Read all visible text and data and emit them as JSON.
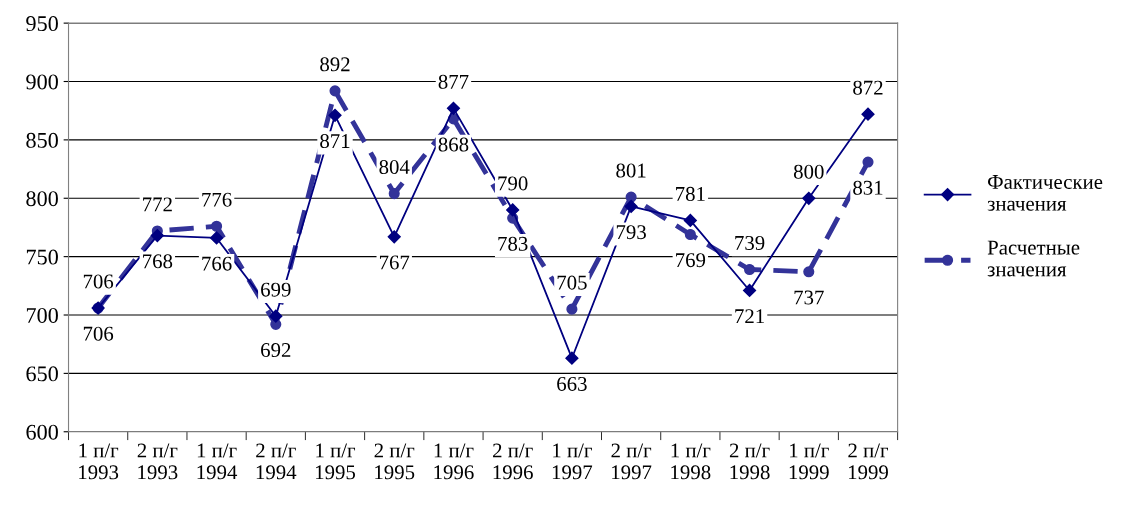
{
  "chart_data": {
    "type": "line",
    "categories": [
      "1 п/г\n1993",
      "2 п/г\n1993",
      "1 п/г\n1994",
      "2 п/г\n1994",
      "1 п/г\n1995",
      "2 п/г\n1995",
      "1 п/г\n1996",
      "2 п/г\n1996",
      "1 п/г\n1997",
      "2 п/г\n1997",
      "1 п/г\n1998",
      "2 п/г\n1998",
      "1 п/г\n1999",
      "2 п/г\n1999"
    ],
    "series": [
      {
        "name": "Фактические\nзначения",
        "color": "#000080",
        "marker": "diamond",
        "line_style": "solid",
        "values": [
          706,
          768,
          766,
          699,
          871,
          767,
          877,
          790,
          663,
          793,
          781,
          721,
          800,
          872
        ]
      },
      {
        "name": "Расчетные\nзначения",
        "color": "#333399",
        "marker": "circle",
        "line_style": "dashed",
        "values": [
          706,
          772,
          776,
          692,
          892,
          804,
          868,
          783,
          705,
          801,
          769,
          739,
          737,
          831
        ]
      }
    ],
    "ylim": [
      600,
      950
    ],
    "yticks": [
      600,
      650,
      700,
      750,
      800,
      850,
      900,
      950
    ],
    "grid": "y",
    "legend": "right",
    "data_labels": true
  }
}
